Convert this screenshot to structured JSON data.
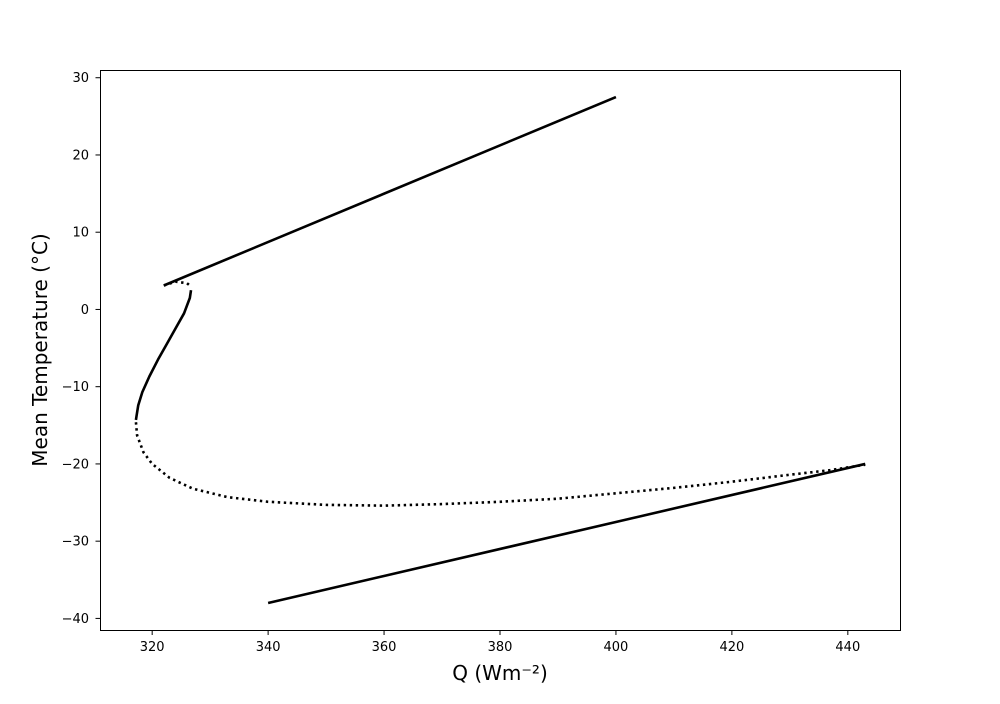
{
  "chart_data": {
    "type": "line",
    "title": "",
    "xlabel": "Q (Wm⁻²)",
    "ylabel": "Mean Temperature (°C)",
    "xlim": [
      311,
      449
    ],
    "ylim": [
      -41.5,
      31
    ],
    "xticks": [
      320,
      340,
      360,
      380,
      400,
      420,
      440
    ],
    "yticks": [
      -40,
      -30,
      -20,
      -10,
      0,
      10,
      20,
      30
    ],
    "xtick_labels": [
      "320",
      "340",
      "360",
      "380",
      "400",
      "420",
      "440"
    ],
    "ytick_labels": [
      "−40",
      "−30",
      "−20",
      "−10",
      "0",
      "10",
      "20",
      "30"
    ],
    "grid": false,
    "legend": "none",
    "line_color": "#000000",
    "series": [
      {
        "style": "solid",
        "x": [
          322,
          400
        ],
        "y": [
          3.1,
          27.5
        ]
      },
      {
        "style": "dotted",
        "x": [
          322,
          324,
          326,
          326.8
        ],
        "y": [
          3.1,
          3.6,
          3.4,
          2.9
        ]
      },
      {
        "style": "solid",
        "x": [
          326.7,
          326.5,
          325.5,
          324,
          322.5,
          321,
          319.5,
          318.3,
          317.6,
          317.3,
          317.2
        ],
        "y": [
          2.5,
          1.5,
          -0.5,
          -2.5,
          -4.5,
          -6.5,
          -8.7,
          -10.7,
          -12.4,
          -13.8,
          -14.3
        ]
      },
      {
        "style": "dotted",
        "x": [
          317.2,
          317.4,
          318.5,
          320,
          323,
          327,
          333,
          340,
          350,
          360,
          370,
          380,
          390,
          400,
          410,
          420,
          430,
          437,
          443
        ],
        "y": [
          -14.6,
          -16.3,
          -18.5,
          -20.0,
          -21.8,
          -23.2,
          -24.3,
          -24.9,
          -25.3,
          -25.4,
          -25.2,
          -24.9,
          -24.5,
          -23.8,
          -23.1,
          -22.3,
          -21.4,
          -20.8,
          -20.1
        ]
      },
      {
        "style": "solid",
        "x": [
          340,
          443
        ],
        "y": [
          -38,
          -20
        ]
      }
    ]
  }
}
